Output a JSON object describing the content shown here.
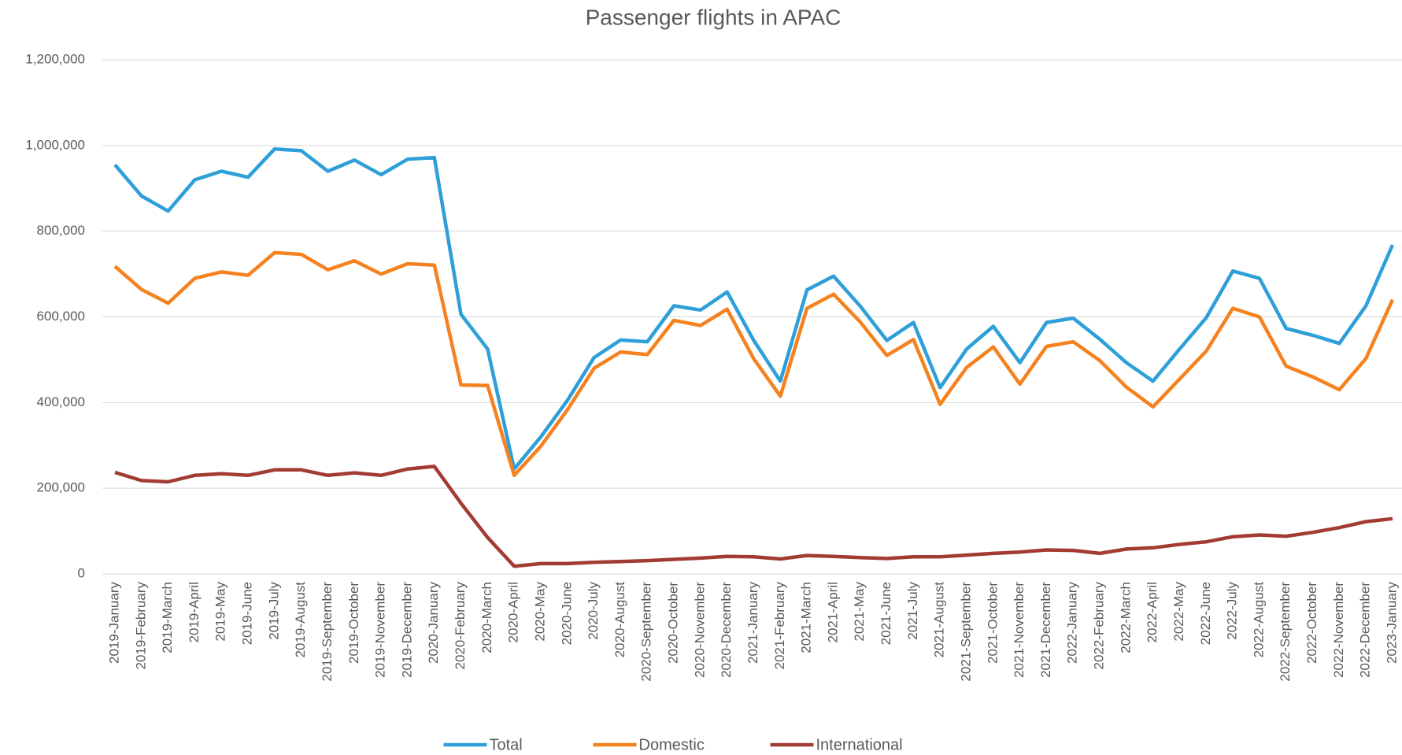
{
  "chart_data": {
    "type": "line",
    "title": "Passenger flights in APAC",
    "categories": [
      "2019-January",
      "2019-February",
      "2019-March",
      "2019-April",
      "2019-May",
      "2019-June",
      "2019-July",
      "2019-August",
      "2019-September",
      "2019-October",
      "2019-November",
      "2019-December",
      "2020-January",
      "2020-February",
      "2020-March",
      "2020-April",
      "2020-May",
      "2020-June",
      "2020-July",
      "2020-August",
      "2020-September",
      "2020-October",
      "2020-November",
      "2020-December",
      "2021-January",
      "2021-February",
      "2021-March",
      "2021-April",
      "2021-May",
      "2021-June",
      "2021-July",
      "2021-August",
      "2021-September",
      "2021-October",
      "2021-November",
      "2021-December",
      "2022-January",
      "2022-February",
      "2022-March",
      "2022-April",
      "2022-May",
      "2022-June",
      "2022-July",
      "2022-August",
      "2022-September",
      "2022-October",
      "2022-November",
      "2022-December",
      "2023-January"
    ],
    "series": [
      {
        "name": "Total",
        "color": "#2e9fd8",
        "values": [
          955000,
          882000,
          847000,
          920000,
          940000,
          926000,
          992000,
          988000,
          940000,
          966000,
          932000,
          968000,
          972000,
          606000,
          525000,
          245000,
          320000,
          405000,
          505000,
          546000,
          542000,
          626000,
          616000,
          658000,
          545000,
          450000,
          663000,
          695000,
          625000,
          545000,
          587000,
          435000,
          525000,
          578000,
          493000,
          587000,
          597000,
          548000,
          493000,
          450000,
          525000,
          598000,
          707000,
          690000,
          573000,
          557000,
          538000,
          626000,
          768000
        ]
      },
      {
        "name": "Domestic",
        "color": "#f5821f",
        "values": [
          718000,
          664000,
          632000,
          690000,
          705000,
          697000,
          750000,
          746000,
          710000,
          731000,
          700000,
          724000,
          721000,
          441000,
          440000,
          230000,
          298000,
          383000,
          480000,
          518000,
          512000,
          592000,
          580000,
          618000,
          502000,
          415000,
          620000,
          653000,
          588000,
          510000,
          547000,
          396000,
          482000,
          530000,
          443000,
          531000,
          542000,
          498000,
          436000,
          390000,
          455000,
          520000,
          620000,
          600000,
          485000,
          460000,
          430000,
          503000,
          640000
        ]
      },
      {
        "name": "International",
        "color": "#a33b32",
        "values": [
          237000,
          218000,
          215000,
          230000,
          234000,
          230000,
          243000,
          243000,
          230000,
          236000,
          230000,
          245000,
          251000,
          165000,
          85000,
          18000,
          24000,
          24000,
          27000,
          29000,
          31000,
          34000,
          37000,
          41000,
          40000,
          35000,
          43000,
          41000,
          38000,
          36000,
          40000,
          40000,
          44000,
          48000,
          51000,
          56000,
          55000,
          48000,
          58000,
          61000,
          69000,
          75000,
          87000,
          91000,
          88000,
          97000,
          108000,
          122000,
          129000
        ]
      }
    ],
    "ylim": [
      0,
      1200000
    ],
    "yticks": [
      0,
      {
        "value": 200000,
        "label": "200,000"
      },
      {
        "value": 400000,
        "label": "400,000"
      },
      {
        "value": 600000,
        "label": "600,000"
      },
      {
        "value": 800000,
        "label": "800,000"
      },
      {
        "value": 1000000,
        "label": "1,000,000"
      },
      {
        "value": 1200000,
        "label": "1,200,000"
      }
    ],
    "grid": true,
    "legend": "bottom"
  }
}
